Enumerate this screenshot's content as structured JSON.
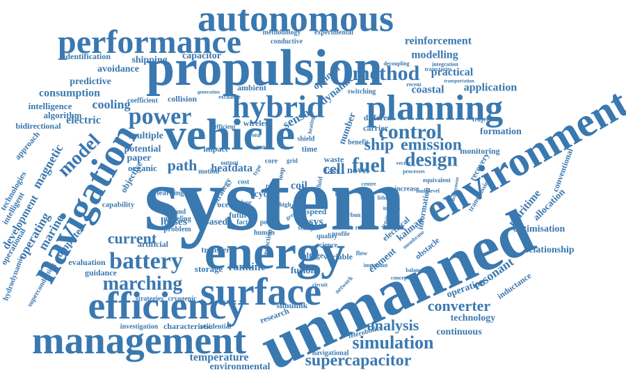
{
  "wordcloud": {
    "color": "#3a78b0",
    "words": [
      {
        "t": "system",
        "s": 3
      },
      {
        "t": "unmanned",
        "s": 3
      },
      {
        "t": "propulsion",
        "s": 3
      },
      {
        "t": "energy",
        "s": 3
      },
      {
        "t": "vehicle",
        "s": 3
      },
      {
        "t": "environment",
        "s": 3
      },
      {
        "t": "navigation",
        "s": 3
      },
      {
        "t": "surface",
        "s": 3
      },
      {
        "t": "efficiency",
        "s": 3
      },
      {
        "t": "management",
        "s": 3
      },
      {
        "t": "autonomous",
        "s": 3
      },
      {
        "t": "performance",
        "s": 3
      },
      {
        "t": "hybrid",
        "s": 3
      },
      {
        "t": "planning",
        "s": 3
      },
      {
        "t": "power",
        "s": 2
      },
      {
        "t": "method",
        "s": 2
      },
      {
        "t": "control",
        "s": 2
      },
      {
        "t": "fuel",
        "s": 2
      },
      {
        "t": "design",
        "s": 2
      },
      {
        "t": "emission",
        "s": 2
      },
      {
        "t": "ship",
        "s": 2
      },
      {
        "t": "battery",
        "s": 2
      },
      {
        "t": "marching",
        "s": 2
      },
      {
        "t": "simulation",
        "s": 2
      },
      {
        "t": "supercapacitor",
        "s": 2
      },
      {
        "t": "converter",
        "s": 2
      },
      {
        "t": "analysis",
        "s": 2
      },
      {
        "t": "model",
        "s": 2
      },
      {
        "t": "cell",
        "s": 2
      },
      {
        "t": "path",
        "s": 2
      },
      {
        "t": "current",
        "s": 2
      },
      {
        "t": "consumption",
        "s": 1
      },
      {
        "t": "reinforcement",
        "s": 1
      },
      {
        "t": "modelling",
        "s": 1
      },
      {
        "t": "coastal",
        "s": 1
      },
      {
        "t": "practical",
        "s": 1
      },
      {
        "t": "application",
        "s": 1
      },
      {
        "t": "formation",
        "s": 1
      },
      {
        "t": "cooling",
        "s": 1
      },
      {
        "t": "magnetic",
        "s": 1
      },
      {
        "t": "development",
        "s": 1
      },
      {
        "t": "marine",
        "s": 1
      },
      {
        "t": "operating",
        "s": 1
      },
      {
        "t": "maritime",
        "s": 1
      },
      {
        "t": "optimisation",
        "s": 1
      },
      {
        "t": "allocation",
        "s": 1
      },
      {
        "t": "relationship",
        "s": 1
      },
      {
        "t": "electric",
        "s": 1
      },
      {
        "t": "shipping",
        "s": 1
      },
      {
        "t": "avoidance",
        "s": 1
      },
      {
        "t": "identification",
        "s": 1
      },
      {
        "t": "capacitor",
        "s": 1
      },
      {
        "t": "predictive",
        "s": 1
      },
      {
        "t": "intelligence",
        "s": 1
      },
      {
        "t": "algorithm",
        "s": 1
      },
      {
        "t": "bidirectional",
        "s": 1
      },
      {
        "t": "approach",
        "s": 1
      },
      {
        "t": "technologies",
        "s": 1
      },
      {
        "t": "intelligent",
        "s": 1
      },
      {
        "t": "computer",
        "s": 1
      },
      {
        "t": "operational",
        "s": 1
      },
      {
        "t": "hydrodynamic",
        "s": 1
      },
      {
        "t": "superconducting",
        "s": 1
      },
      {
        "t": "evaluation",
        "s": 1
      },
      {
        "t": "guidance",
        "s": 1
      },
      {
        "t": "strategies",
        "s": 1
      },
      {
        "t": "cryogenic",
        "s": 1
      },
      {
        "t": "investigation",
        "s": 1
      },
      {
        "t": "characteristic",
        "s": 1
      },
      {
        "t": "residential",
        "s": 1
      },
      {
        "t": "temperature",
        "s": 1
      },
      {
        "t": "environmental",
        "s": 1
      },
      {
        "t": "navigational",
        "s": 1
      },
      {
        "t": "telerobotics",
        "s": 1
      },
      {
        "t": "continuous",
        "s": 1
      },
      {
        "t": "technology",
        "s": 1
      },
      {
        "t": "inductance",
        "s": 1
      },
      {
        "t": "operation",
        "s": 1
      },
      {
        "t": "resonant",
        "s": 1
      },
      {
        "t": "kalman",
        "s": 1
      },
      {
        "t": "element",
        "s": 1
      },
      {
        "t": "electrical",
        "s": 1
      },
      {
        "t": "information",
        "s": 1
      },
      {
        "t": "obstacle",
        "s": 1
      },
      {
        "t": "recovery",
        "s": 1
      },
      {
        "t": "transmission",
        "s": 1
      },
      {
        "t": "conventional",
        "s": 1
      },
      {
        "t": "monitoring",
        "s": 1
      },
      {
        "t": "trajectory",
        "s": 1
      },
      {
        "t": "rankine",
        "s": 1
      },
      {
        "t": "fusion",
        "s": 1
      },
      {
        "t": "storage",
        "s": 1
      },
      {
        "t": "transfer",
        "s": 1
      },
      {
        "t": "voltage",
        "s": 1
      },
      {
        "t": "losses",
        "s": 1
      },
      {
        "t": "based",
        "s": 1
      },
      {
        "t": "artificial",
        "s": 1
      },
      {
        "t": "problem",
        "s": 1
      },
      {
        "t": "simulink",
        "s": 1
      },
      {
        "t": "research",
        "s": 1
      },
      {
        "t": "collision",
        "s": 1
      },
      {
        "t": "coefficient",
        "s": 1
      },
      {
        "t": "sensor",
        "s": 1
      },
      {
        "t": "wireless",
        "s": 1
      },
      {
        "t": "heat",
        "s": 1
      },
      {
        "t": "data",
        "s": 1
      },
      {
        "t": "coil",
        "s": 1
      },
      {
        "t": "usvs",
        "s": 1
      },
      {
        "t": "speed",
        "s": 1
      },
      {
        "t": "fast",
        "s": 1
      },
      {
        "t": "novel",
        "s": 1
      },
      {
        "t": "time",
        "s": 1
      },
      {
        "t": "waste",
        "s": 1
      },
      {
        "t": "carrier",
        "s": 1
      },
      {
        "t": "different",
        "s": 1
      },
      {
        "t": "number",
        "s": 1
      },
      {
        "t": "dynamic",
        "s": 1
      },
      {
        "t": "optimal",
        "s": 1
      },
      {
        "t": "ambient",
        "s": 1
      },
      {
        "t": "methodology",
        "s": 1
      },
      {
        "t": "conductive",
        "s": 1
      },
      {
        "t": "experimental",
        "s": 1
      },
      {
        "t": "switching",
        "s": 1
      },
      {
        "t": "potential",
        "s": 1
      },
      {
        "t": "paper",
        "s": 1
      },
      {
        "t": "organic",
        "s": 1
      },
      {
        "t": "multiple",
        "s": 1
      },
      {
        "t": "capability",
        "s": 1
      },
      {
        "t": "learning",
        "s": 1
      },
      {
        "t": "objective",
        "s": 1
      },
      {
        "t": "strategy",
        "s": 1
      },
      {
        "t": "demand",
        "s": 1
      },
      {
        "t": "modeling",
        "s": 1
      },
      {
        "t": "future",
        "s": 1
      },
      {
        "t": "factor",
        "s": 1
      },
      {
        "t": "result",
        "s": 1
      },
      {
        "t": "quality",
        "s": 1
      },
      {
        "t": "science",
        "s": 1
      },
      {
        "t": "variable",
        "s": 1
      },
      {
        "t": "cycle",
        "s": 1
      },
      {
        "t": "ocean",
        "s": 1
      },
      {
        "t": "core",
        "s": 1
      },
      {
        "t": "real",
        "s": 1
      },
      {
        "t": "cost",
        "s": 1
      },
      {
        "t": "impact",
        "s": 1
      },
      {
        "t": "mode",
        "s": 1
      },
      {
        "t": "shield",
        "s": 1
      },
      {
        "t": "increase",
        "s": 1
      },
      {
        "t": "equivalent",
        "s": 1
      },
      {
        "t": "multilevel",
        "s": 1
      },
      {
        "t": "integration",
        "s": 1
      },
      {
        "t": "trajectories",
        "s": 1
      },
      {
        "t": "transportation",
        "s": 1
      },
      {
        "t": "reliable",
        "s": 1
      },
      {
        "t": "benefit",
        "s": 1
      },
      {
        "t": "processes",
        "s": 1
      },
      {
        "t": "lithium",
        "s": 1
      },
      {
        "t": "density",
        "s": 1
      },
      {
        "t": "membrane",
        "s": 1
      },
      {
        "t": "network",
        "s": 1
      },
      {
        "t": "circuit",
        "s": 1
      },
      {
        "t": "study",
        "s": 1
      },
      {
        "t": "human",
        "s": 1
      },
      {
        "t": "point",
        "s": 1
      },
      {
        "t": "reduction",
        "s": 1
      },
      {
        "t": "motion",
        "s": 1
      },
      {
        "t": "efficient",
        "s": 1
      },
      {
        "t": "output",
        "s": 1
      },
      {
        "t": "loop",
        "s": 1
      },
      {
        "t": "door",
        "s": 1
      },
      {
        "t": "type",
        "s": 1
      },
      {
        "t": "fluid",
        "s": 1
      },
      {
        "t": "diesel",
        "s": 1
      },
      {
        "t": "carbon",
        "s": 1
      },
      {
        "t": "profile",
        "s": 1
      },
      {
        "t": "balancing",
        "s": 1
      },
      {
        "t": "important",
        "s": 1
      },
      {
        "t": "recent",
        "s": 1
      },
      {
        "t": "decoupling",
        "s": 1
      },
      {
        "t": "generation",
        "s": 1
      },
      {
        "t": "exchange",
        "s": 1
      },
      {
        "t": "deployment",
        "s": 1
      },
      {
        "t": "centre",
        "s": 1
      },
      {
        "t": "vector",
        "s": 1
      },
      {
        "t": "inverse",
        "s": 1
      },
      {
        "t": "concept",
        "s": 1
      },
      {
        "t": "load",
        "s": 1
      },
      {
        "t": "flow",
        "s": 1
      },
      {
        "t": "sea",
        "s": 1
      },
      {
        "t": "grid",
        "s": 1
      },
      {
        "t": "heating",
        "s": 1
      },
      {
        "t": "cost",
        "s": 1
      },
      {
        "t": "high",
        "s": 1
      },
      {
        "t": "green",
        "s": 1
      }
    ]
  }
}
